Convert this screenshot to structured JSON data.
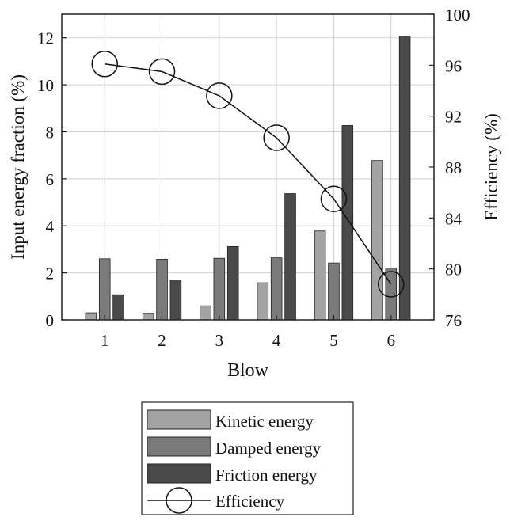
{
  "chart_data": {
    "type": "bar",
    "xlabel": "Blow",
    "ylabel": "Input energy fraction (%)",
    "y2label": "Efficiency (%)",
    "categories": [
      "1",
      "2",
      "3",
      "4",
      "5",
      "6"
    ],
    "ylim": [
      0,
      13
    ],
    "yticks": [
      0,
      2,
      4,
      6,
      8,
      10,
      12
    ],
    "y2lim": [
      76,
      100
    ],
    "y2ticks": [
      76,
      80,
      84,
      88,
      92,
      96,
      100
    ],
    "grid": true,
    "legend_position": "below",
    "series": [
      {
        "name": "Kinetic energy",
        "kind": "bar",
        "axis": "left",
        "color": "#a3a3a3",
        "values": [
          0.3,
          0.28,
          0.6,
          1.58,
          3.78,
          6.78
        ]
      },
      {
        "name": "Damped energy",
        "kind": "bar",
        "axis": "left",
        "color": "#7a7a7a",
        "values": [
          2.6,
          2.58,
          2.62,
          2.64,
          2.42,
          2.2
        ]
      },
      {
        "name": "Friction energy",
        "kind": "bar",
        "axis": "left",
        "color": "#4a4a4a",
        "values": [
          1.07,
          1.7,
          3.12,
          5.37,
          8.27,
          12.07
        ]
      },
      {
        "name": "Efficiency",
        "kind": "line",
        "axis": "right",
        "marker": "open-circle",
        "color": "#111111",
        "values": [
          96.1,
          95.5,
          93.6,
          90.3,
          85.5,
          78.8
        ]
      }
    ]
  }
}
